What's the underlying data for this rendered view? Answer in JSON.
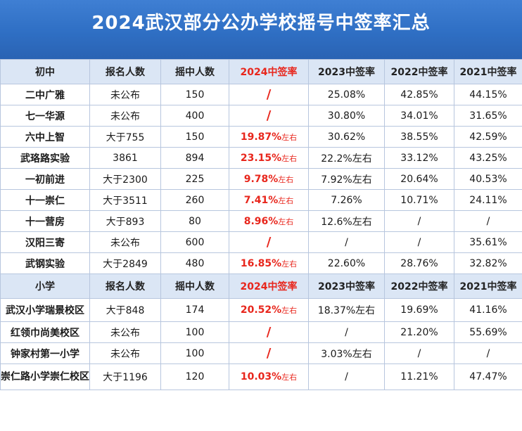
{
  "title": "2024武汉部分公办学校摇号中签率汇总",
  "colors": {
    "banner": "#2f6fc4",
    "header_bg": "#dbe6f5",
    "highlight": "#e8261c",
    "border": "#b7c6de"
  },
  "middle": {
    "headers": [
      "初中",
      "报名人数",
      "摇中人数",
      "2024中签率",
      "2023中签率",
      "2022中签率",
      "2021中签率"
    ],
    "rows": [
      {
        "name": "二中广雅",
        "applicants": "未公布",
        "drawn": "150",
        "r2024": "/",
        "r2024_suffix": "",
        "r2023": "25.08%",
        "r2022": "42.85%",
        "r2021": "44.15%"
      },
      {
        "name": "七一华源",
        "applicants": "未公布",
        "drawn": "400",
        "r2024": "/",
        "r2024_suffix": "",
        "r2023": "30.80%",
        "r2022": "34.01%",
        "r2021": "31.65%"
      },
      {
        "name": "六中上智",
        "applicants": "大于755",
        "drawn": "150",
        "r2024": "19.87%",
        "r2024_suffix": "左右",
        "r2023": "30.62%",
        "r2022": "38.55%",
        "r2021": "42.59%"
      },
      {
        "name": "武珞路实验",
        "applicants": "3861",
        "drawn": "894",
        "r2024": "23.15%",
        "r2024_suffix": "左右",
        "r2023": "22.2%左右",
        "r2022": "33.12%",
        "r2021": "43.25%"
      },
      {
        "name": "一初前进",
        "applicants": "大于2300",
        "drawn": "225",
        "r2024": "9.78%",
        "r2024_suffix": "左右",
        "r2023": "7.92%左右",
        "r2022": "20.64%",
        "r2021": "40.53%"
      },
      {
        "name": "十一崇仁",
        "applicants": "大于3511",
        "drawn": "260",
        "r2024": "7.41%",
        "r2024_suffix": "左右",
        "r2023": "7.26%",
        "r2022": "10.71%",
        "r2021": "24.11%"
      },
      {
        "name": "十一营房",
        "applicants": "大于893",
        "drawn": "80",
        "r2024": "8.96%",
        "r2024_suffix": "左右",
        "r2023": "12.6%左右",
        "r2022": "/",
        "r2021": "/"
      },
      {
        "name": "汉阳三寄",
        "applicants": "未公布",
        "drawn": "600",
        "r2024": "/",
        "r2024_suffix": "",
        "r2023": "/",
        "r2022": "/",
        "r2021": "35.61%"
      },
      {
        "name": "武钢实验",
        "applicants": "大于2849",
        "drawn": "480",
        "r2024": "16.85%",
        "r2024_suffix": "左右",
        "r2023": "22.60%",
        "r2022": "28.76%",
        "r2021": "32.82%"
      }
    ]
  },
  "primary": {
    "headers": [
      "小学",
      "报名人数",
      "摇中人数",
      "2024中签率",
      "2023中签率",
      "2022中签率",
      "2021中签率"
    ],
    "rows": [
      {
        "name": "武汉小学瑞景校区",
        "applicants": "大于848",
        "drawn": "174",
        "r2024": "20.52%",
        "r2024_suffix": "左右",
        "r2023": "18.37%左右",
        "r2022": "19.69%",
        "r2021": "41.16%"
      },
      {
        "name": "红领巾尚美校区",
        "applicants": "未公布",
        "drawn": "100",
        "r2024": "/",
        "r2024_suffix": "",
        "r2023": "/",
        "r2022": "21.20%",
        "r2021": "55.69%"
      },
      {
        "name": "钟家村第一小学",
        "applicants": "未公布",
        "drawn": "100",
        "r2024": "/",
        "r2024_suffix": "",
        "r2023": "3.03%左右",
        "r2022": "/",
        "r2021": "/"
      },
      {
        "name": "崇仁路小学崇仁校区",
        "applicants": "大于1196",
        "drawn": "120",
        "r2024": "10.03%",
        "r2024_suffix": "左右",
        "r2023": "/",
        "r2022": "11.21%",
        "r2021": "47.47%"
      }
    ]
  }
}
